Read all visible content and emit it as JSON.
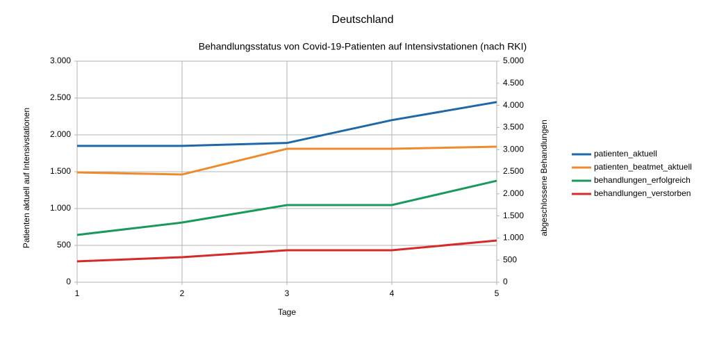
{
  "chart_data": {
    "type": "line",
    "title": "Deutschland",
    "subtitle": "Behandlungsstatus von Covid-19-Patienten auf Intensivstationen (nach RKI)",
    "x_label": "Tage",
    "y_label": "Patienten aktuell auf Intensivstationen",
    "y2_label": "abgeschlossene Behandlungen",
    "x": [
      1,
      2,
      3,
      4,
      5
    ],
    "xlim": [
      1,
      5
    ],
    "xticks": [
      1,
      2,
      3,
      4,
      5
    ],
    "ylim": [
      0,
      3000
    ],
    "yticks": [
      0,
      {
        "value": 500,
        "label": "500"
      },
      {
        "value": 1000,
        "label": "1.000"
      },
      {
        "value": 1500,
        "label": "1.500"
      },
      {
        "value": 2000,
        "label": "2.000"
      },
      {
        "value": 2500,
        "label": "2.500"
      },
      {
        "value": 3000,
        "label": "3.000"
      }
    ],
    "y2lim": [
      0,
      5000
    ],
    "y2ticks": [
      0,
      500,
      {
        "value": 1000,
        "label": "1.000"
      },
      {
        "value": 1500,
        "label": "1.500"
      },
      {
        "value": 2000,
        "label": "2.000"
      },
      {
        "value": 2500,
        "label": "2.500"
      },
      {
        "value": 3000,
        "label": "3.000"
      },
      {
        "value": 3500,
        "label": "3.500"
      },
      {
        "value": 4000,
        "label": "4.000"
      },
      {
        "value": 4500,
        "label": "4.500"
      },
      {
        "value": 5000,
        "label": "5.000"
      }
    ],
    "grid": true,
    "legend": "right",
    "series": [
      {
        "name": "patienten_aktuell",
        "color": "#1f67a6",
        "values": [
          1850,
          1850,
          1890,
          2200,
          2445
        ]
      },
      {
        "name": "patienten_beatmet_aktuell",
        "color": "#ee8a2c",
        "values": [
          1490,
          1462,
          1811,
          1811,
          1840
        ]
      },
      {
        "name": "behandlungen_erfolgreich",
        "color": "#1a9a5a",
        "axis": "y2",
        "values": [
          1070,
          1350,
          1745,
          1745,
          2295
        ]
      },
      {
        "name": "behandlungen_verstorben",
        "color": "#d42a2a",
        "axis": "y2",
        "values": [
          472,
          566,
          723,
          723,
          943
        ]
      }
    ]
  }
}
